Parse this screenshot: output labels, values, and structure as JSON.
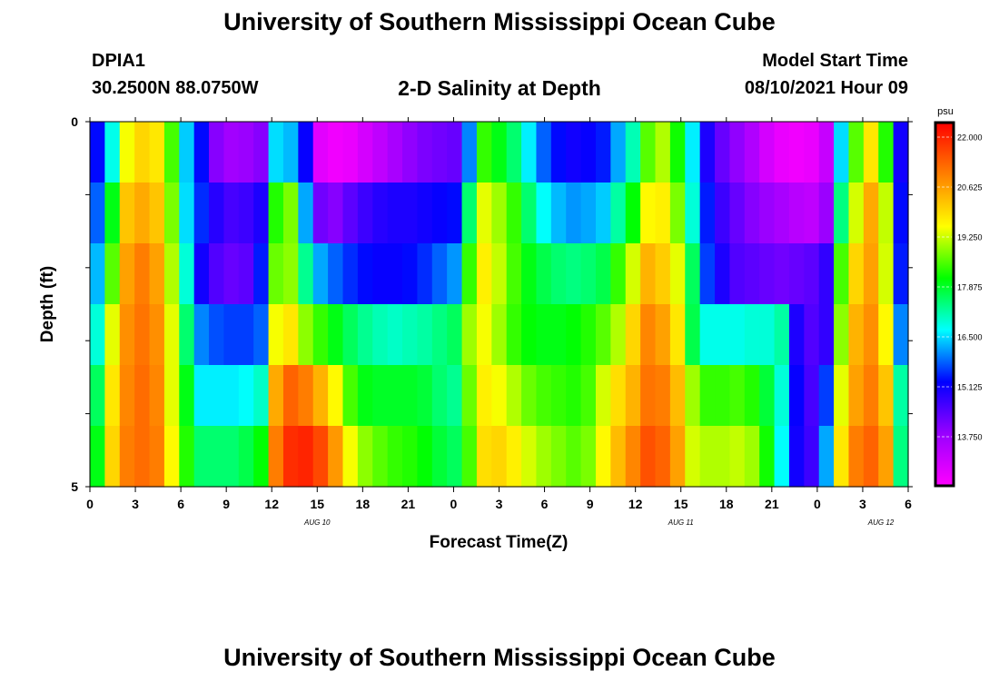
{
  "header": {
    "title": "University of Southern Mississippi Ocean Cube",
    "station_id": "DPIA1",
    "coords": "30.2500N  88.0750W",
    "plot_title": "2-D Salinity at Depth",
    "start_label": "Model Start Time",
    "start_value": "08/10/2021 Hour 09"
  },
  "footer": {
    "title": "University of Southern Mississippi Ocean Cube"
  },
  "colors": {
    "scale": [
      "#ff00ff",
      "#9900ff",
      "#0000ff",
      "#00ffff",
      "#00ff00",
      "#ffff00",
      "#ff8000",
      "#ff0000"
    ]
  },
  "chart_data": {
    "type": "heatmap",
    "title": "2-D Salinity at Depth",
    "xlabel": "Forecast Time(Z)",
    "ylabel": "Depth (ft)",
    "x_ticks": [
      "0",
      "3",
      "6",
      "9",
      "12",
      "15",
      "18",
      "21",
      "0",
      "3",
      "6",
      "9",
      "12",
      "15",
      "18",
      "21",
      "0",
      "3",
      "6"
    ],
    "date_labels": [
      "AUG 10",
      "AUG 11",
      "AUG 12"
    ],
    "y_ticks": [
      "0",
      "5"
    ],
    "ylim": [
      0,
      5
    ],
    "x_range_hours": [
      0,
      54
    ],
    "colorbar": {
      "unit": "psu",
      "ticks": [
        "22.000",
        "20.625",
        "19.250",
        "17.875",
        "16.500",
        "15.125",
        "13.750"
      ],
      "range": [
        12.4,
        22.4
      ]
    },
    "depths": [
      0,
      1,
      2,
      3,
      4,
      5
    ],
    "hours": [
      0,
      1,
      2,
      3,
      4,
      5,
      6,
      7,
      8,
      9,
      10,
      11,
      12,
      13,
      14,
      15,
      16,
      17,
      18,
      19,
      20,
      21,
      22,
      23,
      24,
      25,
      26,
      27,
      28,
      29,
      30,
      31,
      32,
      33,
      34,
      35,
      36,
      37,
      38,
      39,
      40,
      41,
      42,
      43,
      44,
      45,
      46,
      47,
      48,
      49,
      50,
      51,
      52,
      53,
      54
    ],
    "salinity": [
      [
        15.3,
        16.8,
        19.5,
        20.0,
        19.8,
        18.5,
        16.4,
        15.3,
        14.0,
        13.7,
        13.8,
        14.0,
        16.5,
        16.3,
        15.2,
        12.8,
        12.6,
        12.7,
        13.0,
        13.3,
        13.6,
        13.9,
        14.1,
        14.2,
        14.3,
        16.0,
        18.4,
        18.0,
        17.5,
        16.6,
        15.8,
        15.3,
        15.1,
        15.2,
        15.4,
        16.2,
        17.1,
        18.6,
        19.1,
        18.2,
        16.6,
        15.0,
        14.3,
        13.9,
        13.5,
        13.0,
        12.7,
        12.6,
        12.7,
        13.2,
        16.5,
        18.6,
        19.8,
        18.3,
        15.1
      ],
      [
        15.8,
        18.0,
        20.2,
        20.5,
        20.2,
        18.8,
        16.5,
        15.5,
        14.9,
        14.6,
        14.7,
        15.0,
        18.3,
        18.8,
        16.2,
        14.2,
        14.0,
        14.4,
        14.7,
        14.9,
        15.0,
        15.0,
        15.1,
        15.2,
        15.3,
        17.5,
        19.4,
        19.0,
        18.4,
        17.5,
        16.7,
        16.3,
        16.1,
        16.2,
        16.4,
        17.2,
        18.1,
        19.6,
        19.7,
        18.8,
        16.9,
        15.4,
        14.7,
        14.3,
        14.0,
        13.8,
        13.6,
        13.4,
        13.3,
        13.8,
        17.4,
        19.3,
        20.5,
        19.2,
        15.3
      ],
      [
        16.3,
        18.6,
        20.6,
        21.0,
        20.6,
        19.1,
        16.9,
        15.1,
        14.5,
        14.3,
        14.4,
        15.4,
        18.7,
        18.9,
        17.3,
        16.2,
        15.8,
        15.5,
        15.3,
        15.2,
        15.2,
        15.3,
        15.5,
        15.8,
        16.1,
        18.4,
        19.7,
        19.2,
        18.5,
        18.0,
        17.7,
        17.5,
        17.4,
        17.5,
        17.7,
        18.4,
        19.3,
        20.4,
        20.1,
        19.4,
        17.6,
        15.6,
        15.0,
        14.5,
        14.4,
        14.3,
        14.2,
        14.3,
        14.4,
        14.8,
        18.5,
        20.0,
        20.6,
        19.3,
        15.4
      ],
      [
        16.9,
        19.4,
        20.8,
        21.1,
        20.8,
        19.4,
        17.5,
        16.0,
        15.7,
        15.6,
        15.6,
        15.8,
        19.5,
        19.8,
        18.9,
        18.4,
        18.0,
        17.6,
        17.3,
        17.1,
        17.0,
        17.1,
        17.2,
        17.4,
        17.6,
        19.0,
        19.5,
        19.0,
        18.4,
        18.1,
        18.0,
        18.0,
        18.1,
        18.3,
        18.6,
        19.1,
        20.0,
        20.9,
        20.6,
        19.8,
        17.7,
        16.8,
        16.8,
        16.8,
        16.9,
        16.9,
        17.2,
        15.0,
        14.5,
        14.8,
        18.9,
        20.4,
        20.8,
        19.6,
        16.0
      ],
      [
        17.6,
        19.8,
        20.9,
        21.2,
        20.9,
        19.4,
        18.0,
        16.6,
        16.6,
        16.6,
        16.7,
        17.0,
        20.5,
        21.3,
        21.0,
        20.4,
        19.6,
        18.5,
        18.0,
        17.9,
        17.9,
        17.9,
        17.8,
        17.5,
        17.3,
        18.7,
        19.7,
        19.5,
        19.1,
        18.7,
        18.5,
        18.4,
        18.3,
        18.5,
        19.3,
        19.9,
        20.4,
        21.1,
        21.0,
        20.3,
        19.0,
        18.4,
        18.4,
        18.5,
        18.3,
        17.8,
        16.9,
        15.2,
        14.6,
        15.6,
        19.4,
        20.6,
        21.0,
        20.2,
        17.2
      ],
      [
        18.0,
        20.0,
        21.0,
        21.2,
        21.0,
        19.6,
        18.3,
        17.5,
        17.5,
        17.5,
        17.7,
        18.1,
        21.0,
        21.9,
        22.0,
        21.6,
        20.7,
        19.5,
        18.9,
        18.6,
        18.4,
        18.3,
        18.1,
        17.8,
        17.6,
        18.5,
        19.9,
        20.0,
        19.7,
        19.3,
        19.0,
        18.8,
        18.6,
        18.8,
        19.6,
        20.3,
        20.9,
        21.5,
        21.3,
        20.6,
        19.3,
        19.1,
        19.1,
        19.2,
        19.0,
        18.2,
        16.7,
        15.1,
        14.7,
        16.2,
        19.8,
        21.0,
        21.3,
        20.6,
        17.4
      ]
    ]
  }
}
